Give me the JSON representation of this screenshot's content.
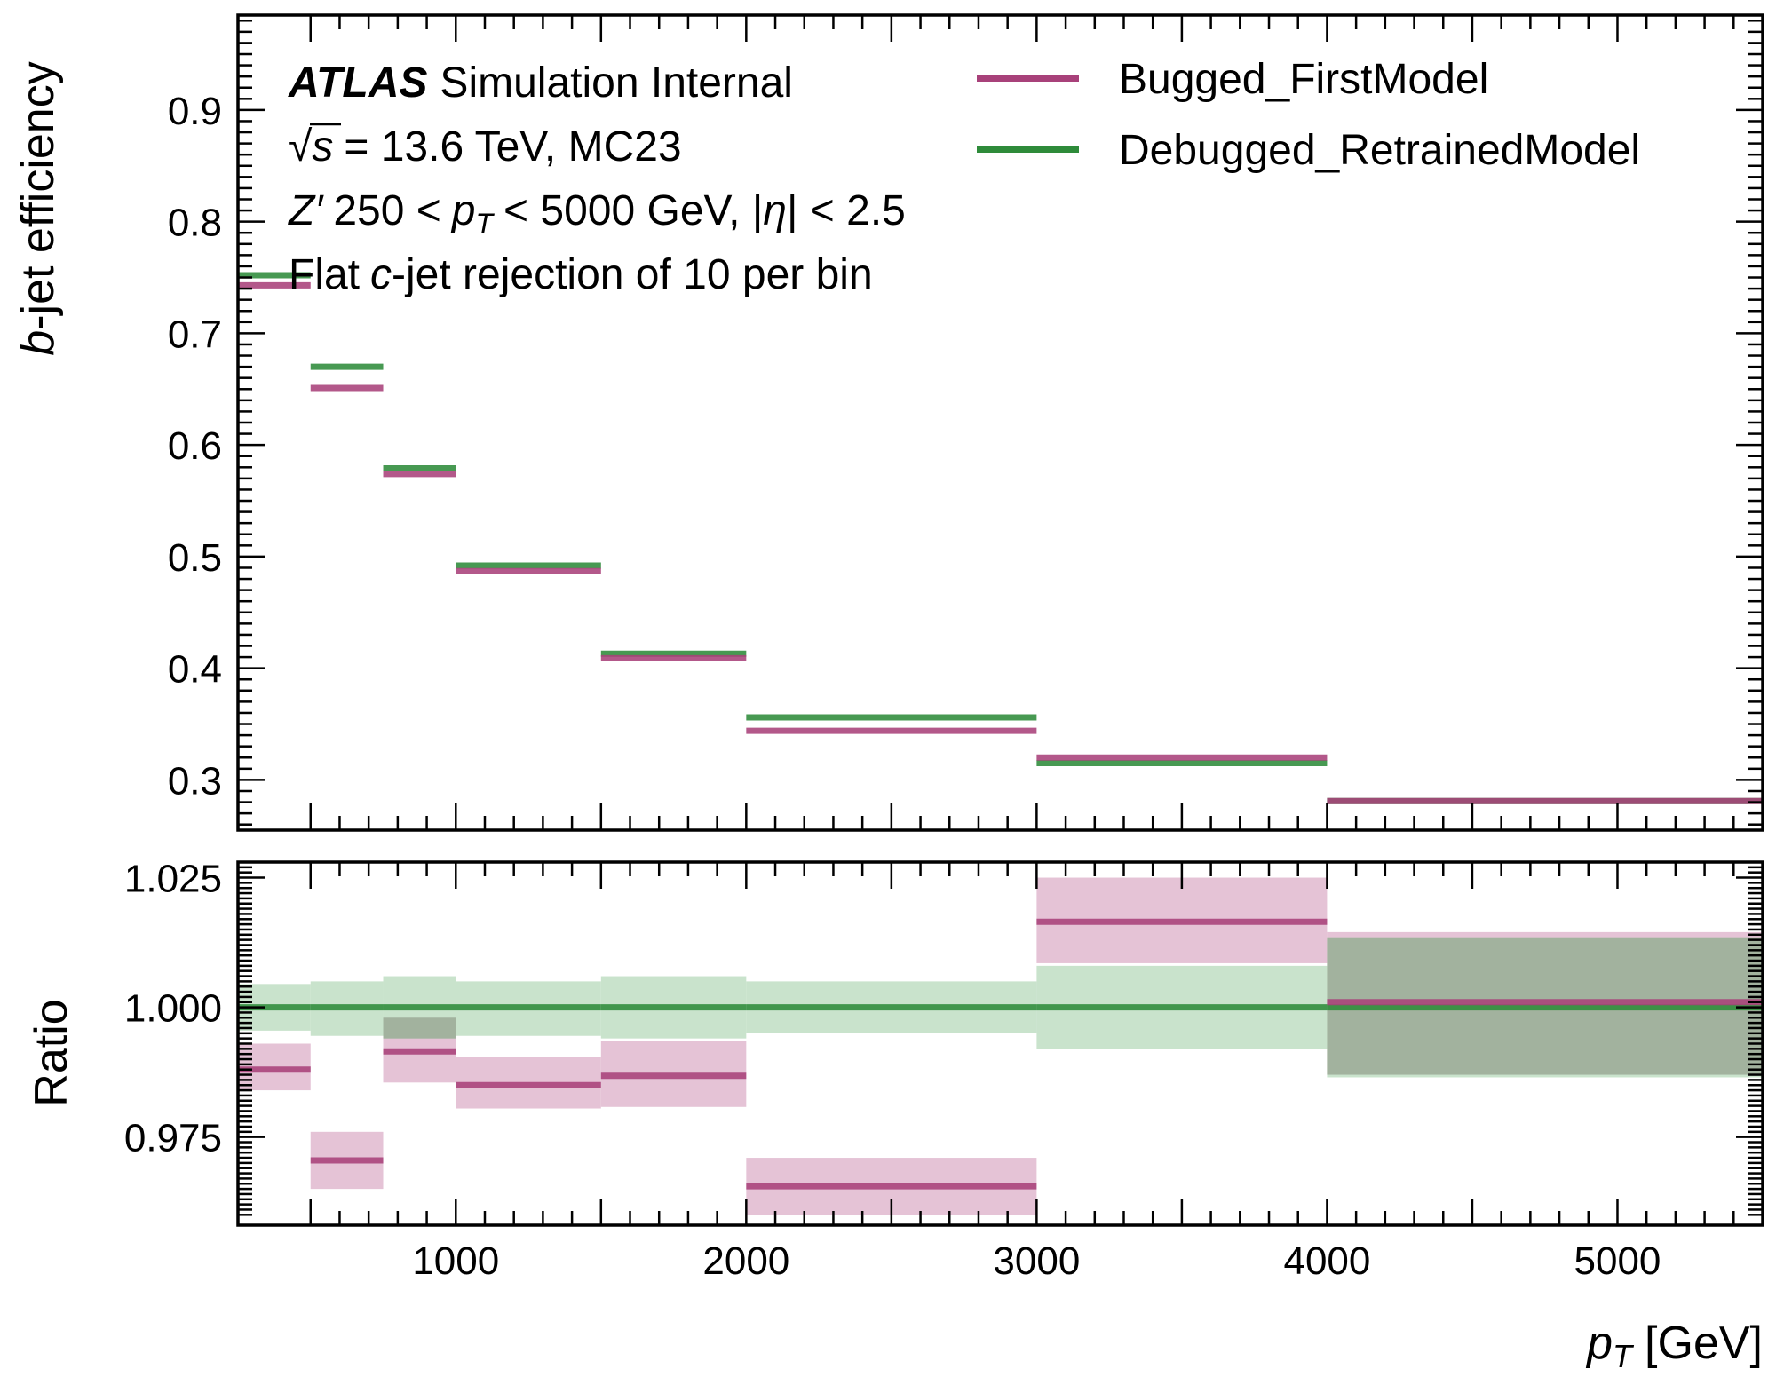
{
  "chart_data": [
    {
      "type": "step",
      "panel": "top",
      "ylabel": "b-jet efficiency",
      "xlim": [
        250,
        5500
      ],
      "ylim": [
        0.255,
        0.985
      ],
      "y_ticks": [
        "0.3",
        "0.4",
        "0.5",
        "0.6",
        "0.7",
        "0.8",
        "0.9"
      ],
      "grid": false,
      "legend_position": "top-right",
      "annotations": {
        "experiment_bold": "ATLAS",
        "experiment_rest": "Simulation Internal",
        "line2_sqrt": "√",
        "line2_s": "s",
        "line2_rest": "= 13.6 TeV, MC23",
        "line3_z": "Z′",
        "line3_a": "250 <",
        "line3_p": "p",
        "line3_sub": "T",
        "line3_b": "< 5000 GeV, |",
        "line3_eta": "η",
        "line3_c": "| < 2.5",
        "line4_a": "Flat",
        "line4_c": "c",
        "line4_b": "-jet rejection of 10 per bin"
      },
      "bins": [
        [
          250,
          500
        ],
        [
          500,
          750
        ],
        [
          750,
          1000
        ],
        [
          1000,
          1500
        ],
        [
          1500,
          2000
        ],
        [
          2000,
          3000
        ],
        [
          3000,
          4000
        ],
        [
          4000,
          5500
        ]
      ],
      "series": [
        {
          "name": "Bugged_FirstModel",
          "color": "#a8417a",
          "values": [
            0.743,
            0.651,
            0.574,
            0.487,
            0.409,
            0.344,
            0.32,
            0.281
          ]
        },
        {
          "name": "Debugged_RetrainedModel",
          "color": "#2e8b3a",
          "values": [
            0.752,
            0.67,
            0.579,
            0.492,
            0.413,
            0.356,
            0.315,
            0.281
          ]
        }
      ]
    },
    {
      "type": "step",
      "panel": "bottom",
      "xlabel_main": "p",
      "xlabel_sub": "T",
      "xlabel_unit": "[GeV]",
      "ylabel": "Ratio",
      "xlim": [
        250,
        5500
      ],
      "ylim": [
        0.958,
        1.028
      ],
      "x_ticks": [
        "1000",
        "2000",
        "3000",
        "4000",
        "5000"
      ],
      "y_ticks": [
        "0.975",
        "1.000",
        "1.025"
      ],
      "bins": [
        [
          250,
          500
        ],
        [
          500,
          750
        ],
        [
          750,
          1000
        ],
        [
          1000,
          1500
        ],
        [
          1500,
          2000
        ],
        [
          2000,
          3000
        ],
        [
          3000,
          4000
        ],
        [
          4000,
          5500
        ]
      ],
      "series": [
        {
          "name": "Bugged_FirstModel",
          "color": "#a8417a",
          "band_color": "#e4c0d4",
          "values": [
            0.988,
            0.9705,
            0.9915,
            0.985,
            0.9868,
            0.9655,
            1.0165,
            1.001
          ],
          "band_low": [
            0.984,
            0.965,
            0.9855,
            0.9805,
            0.9808,
            0.96,
            1.0085,
            0.987
          ],
          "band_high": [
            0.993,
            0.976,
            0.998,
            0.9905,
            0.9935,
            0.971,
            1.025,
            1.0145
          ]
        },
        {
          "name": "Debugged_RetrainedModel",
          "color": "#2e8b3a",
          "band_color": "#bcdcbf",
          "values": [
            1.0,
            1.0,
            1.0,
            1.0,
            1.0,
            1.0,
            1.0,
            1.0
          ],
          "band_low": [
            0.9955,
            0.9945,
            0.994,
            0.9945,
            0.994,
            0.995,
            0.992,
            0.9865
          ],
          "band_high": [
            1.0045,
            1.005,
            1.006,
            1.005,
            1.006,
            1.005,
            1.008,
            1.0135
          ]
        }
      ]
    }
  ]
}
